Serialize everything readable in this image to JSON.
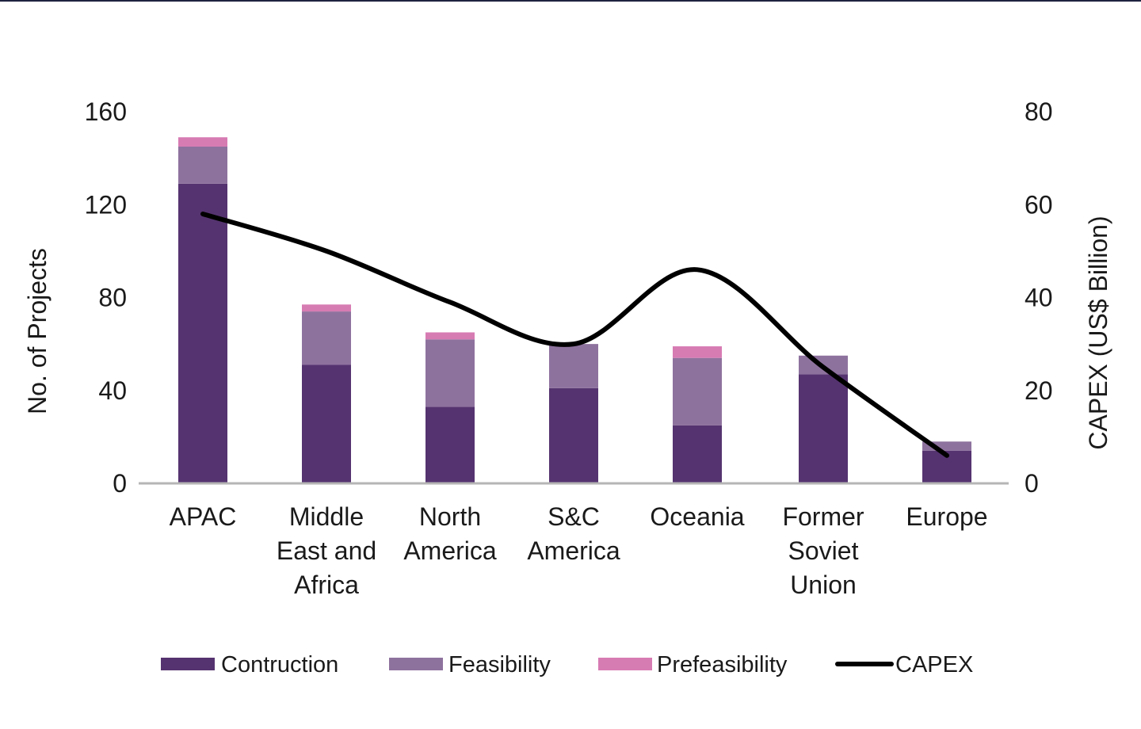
{
  "chart_data": {
    "type": "bar",
    "stacked": true,
    "categories": [
      [
        "APAC"
      ],
      [
        "Middle",
        "East and",
        "Africa"
      ],
      [
        "North",
        "America"
      ],
      [
        "S&C",
        "America"
      ],
      [
        "Oceania"
      ],
      [
        "Former",
        "Soviet",
        "Union"
      ],
      [
        "Europe"
      ]
    ],
    "series": [
      {
        "name": "Contruction",
        "color": "#553370",
        "values": [
          129,
          51,
          33,
          41,
          25,
          47,
          14
        ]
      },
      {
        "name": "Feasibility",
        "color": "#8e729e",
        "values": [
          16,
          23,
          29,
          19,
          29,
          8,
          4
        ]
      },
      {
        "name": "Prefeasibility",
        "color": "#d77bb3",
        "values": [
          4,
          3,
          3,
          0,
          5,
          0,
          0
        ]
      }
    ],
    "line_series": {
      "name": "CAPEX",
      "color": "#000000",
      "axis": "right",
      "values": [
        58,
        50,
        39,
        30,
        46,
        25,
        6
      ]
    },
    "ylabel": "No. of Projects",
    "y2label": "CAPEX (US$ Billion)",
    "ylim": [
      0,
      160
    ],
    "y2lim": [
      0,
      80
    ],
    "yticks": [
      "0",
      "40",
      "80",
      "120",
      "160"
    ],
    "y2ticks": [
      "0",
      "20",
      "40",
      "60",
      "80"
    ],
    "grid": false,
    "legend_position": "bottom"
  }
}
